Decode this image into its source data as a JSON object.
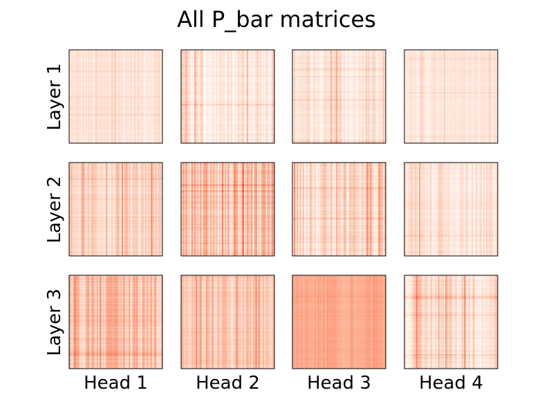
{
  "chart_data": {
    "type": "heatmap",
    "title": "All P_bar matrices",
    "rows": [
      "Layer 1",
      "Layer 2",
      "Layer 3"
    ],
    "cols": [
      "Head 1",
      "Head 2",
      "Head 3",
      "Head 4"
    ],
    "colormap": "Reds",
    "colormap_colors": [
      "#fff5f0",
      "#fee0d2",
      "#fcbba1",
      "#fc9272",
      "#fb6a4a",
      "#de2d26",
      "#a50f15"
    ],
    "axes_ticks": false,
    "panel_mean_intensity": [
      [
        0.13,
        0.11,
        0.12,
        0.11
      ],
      [
        0.2,
        0.3,
        0.19,
        0.14
      ],
      [
        0.3,
        0.27,
        0.4,
        0.17
      ]
    ],
    "panel_stripe_contrast": [
      [
        0.08,
        0.14,
        0.12,
        0.06
      ],
      [
        0.12,
        0.18,
        0.14,
        0.11
      ],
      [
        0.15,
        0.1,
        0.05,
        0.15
      ]
    ]
  }
}
